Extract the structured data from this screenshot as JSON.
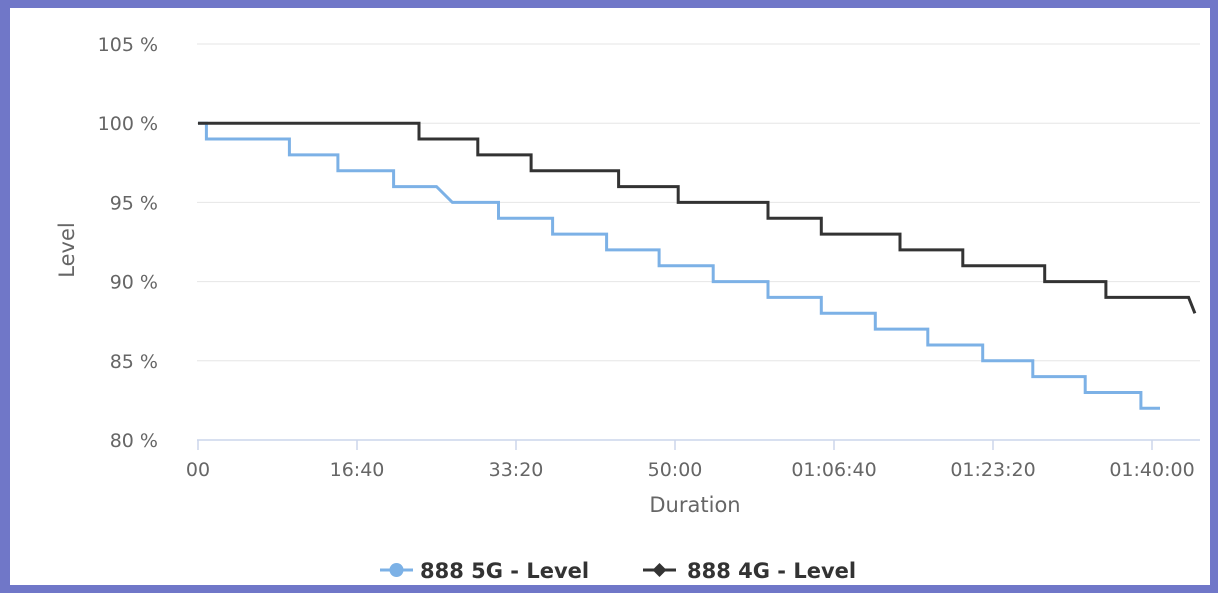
{
  "chart_data": {
    "type": "line",
    "step": true,
    "title": "",
    "xlabel": "Duration",
    "ylabel": "Level",
    "xlim": [
      0,
      6300
    ],
    "ylim": [
      80,
      105
    ],
    "x_ticks": [
      {
        "value": 0,
        "label": "00"
      },
      {
        "value": 1000,
        "label": "16:40"
      },
      {
        "value": 2000,
        "label": "33:20"
      },
      {
        "value": 3000,
        "label": "50:00"
      },
      {
        "value": 4000,
        "label": "01:06:40"
      },
      {
        "value": 5000,
        "label": "01:23:20"
      },
      {
        "value": 6000,
        "label": "01:40:00"
      }
    ],
    "y_ticks": [
      {
        "value": 80,
        "label": "80 %"
      },
      {
        "value": 85,
        "label": "85 %"
      },
      {
        "value": 90,
        "label": "90 %"
      },
      {
        "value": 95,
        "label": "95 %"
      },
      {
        "value": 100,
        "label": "100 %"
      },
      {
        "value": 105,
        "label": "105 %"
      }
    ],
    "grid": "horizontal",
    "legend_position": "bottom-center",
    "series": [
      {
        "name": "888 5G - Level",
        "color": "#7cb1e6",
        "marker": "circle",
        "points": [
          [
            0,
            100
          ],
          [
            53,
            100
          ],
          [
            53,
            99
          ],
          [
            575,
            99
          ],
          [
            575,
            98
          ],
          [
            880,
            98
          ],
          [
            880,
            97
          ],
          [
            1230,
            97
          ],
          [
            1230,
            96
          ],
          [
            1500,
            96
          ],
          [
            1600,
            95
          ],
          [
            1890,
            95
          ],
          [
            1890,
            94
          ],
          [
            2230,
            94
          ],
          [
            2230,
            93
          ],
          [
            2570,
            93
          ],
          [
            2570,
            92
          ],
          [
            2900,
            92
          ],
          [
            2900,
            91
          ],
          [
            3240,
            91
          ],
          [
            3240,
            90
          ],
          [
            3585,
            90
          ],
          [
            3585,
            89
          ],
          [
            3920,
            89
          ],
          [
            3920,
            88
          ],
          [
            4260,
            88
          ],
          [
            4260,
            87
          ],
          [
            4590,
            87
          ],
          [
            4590,
            86
          ],
          [
            4935,
            86
          ],
          [
            4935,
            85
          ],
          [
            5250,
            85
          ],
          [
            5250,
            84
          ],
          [
            5580,
            84
          ],
          [
            5580,
            83
          ],
          [
            5930,
            83
          ],
          [
            5930,
            82
          ],
          [
            6050,
            82
          ]
        ]
      },
      {
        "name": "888 4G - Level",
        "color": "#333333",
        "marker": "diamond",
        "points": [
          [
            0,
            100
          ],
          [
            1390,
            100
          ],
          [
            1390,
            99
          ],
          [
            1760,
            99
          ],
          [
            1760,
            98
          ],
          [
            2095,
            98
          ],
          [
            2095,
            97
          ],
          [
            2645,
            97
          ],
          [
            2645,
            96
          ],
          [
            3020,
            96
          ],
          [
            3020,
            95
          ],
          [
            3585,
            95
          ],
          [
            3585,
            94
          ],
          [
            3920,
            94
          ],
          [
            3920,
            93
          ],
          [
            4415,
            93
          ],
          [
            4415,
            92
          ],
          [
            4810,
            92
          ],
          [
            4810,
            91
          ],
          [
            5325,
            91
          ],
          [
            5325,
            90
          ],
          [
            5710,
            90
          ],
          [
            5710,
            89
          ],
          [
            6230,
            89
          ],
          [
            6270,
            88
          ]
        ]
      }
    ]
  }
}
